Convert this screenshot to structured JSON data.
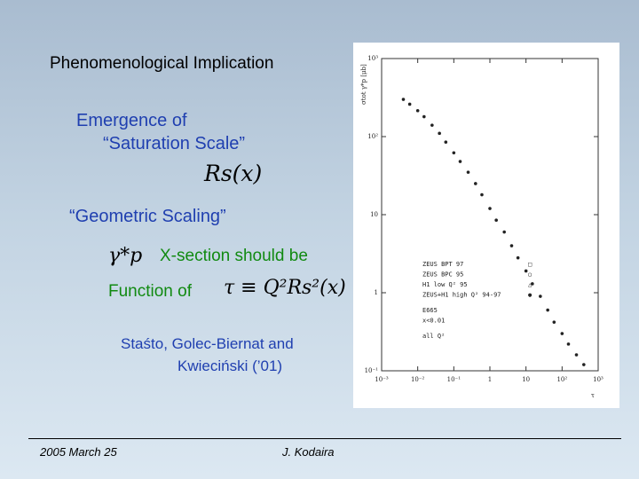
{
  "slide": {
    "title": "Phenomenological Implication",
    "emergence_line1": "Emergence of",
    "emergence_line2": "“Saturation Scale”",
    "saturation_formula": "Rs(x)",
    "geometric_scaling": "“Geometric Scaling”",
    "gamma_formula": "γ*p",
    "xsection_text": "X-section should be",
    "function_of_text": "Function of",
    "tau_formula": "τ ≡ Q²Rs²(x)",
    "authors_line1": "Staśto, Golec-Biernat and",
    "authors_line2": "Kwieciński  (’01)"
  },
  "footer": {
    "date": "2005 March 25",
    "author": "J. Kodaira"
  },
  "colors": {
    "blue_text": "#1f3fb0",
    "green_text": "#118a11"
  },
  "chart_data": {
    "type": "scatter",
    "ylabel": "σtot γ*p [μb]",
    "xlabel": "τ",
    "xscale": "log",
    "yscale": "log",
    "xlim": [
      0.001,
      1000
    ],
    "ylim": [
      0.1,
      1000
    ],
    "x_ticks": [
      "10⁻³",
      "10⁻²",
      "10⁻¹",
      "1",
      "10",
      "10²",
      "10³"
    ],
    "y_ticks": [
      "10⁻¹",
      "1",
      "10",
      "10²",
      "10³"
    ],
    "legend": [
      "ZEUS BPT 97",
      "ZEUS BPC 95",
      "H1 low Q² 95",
      "ZEUS+H1 high Q² 94-97",
      "E665",
      "x<0.01",
      "all Q²"
    ],
    "legend_position": "lower-right",
    "series": [
      {
        "x": [
          0.004,
          0.006,
          0.01,
          0.015,
          0.025,
          0.04,
          0.06,
          0.1,
          0.15,
          0.25,
          0.4,
          0.6,
          1,
          1.5,
          2.5,
          4,
          6,
          10,
          15,
          25,
          40,
          60,
          100,
          150,
          250,
          400
        ],
        "y": [
          300,
          260,
          215,
          180,
          140,
          110,
          85,
          62,
          48,
          35,
          25,
          18,
          12,
          8.5,
          6,
          4,
          2.8,
          1.9,
          1.3,
          0.9,
          0.6,
          0.42,
          0.3,
          0.22,
          0.16,
          0.12
        ]
      }
    ]
  }
}
